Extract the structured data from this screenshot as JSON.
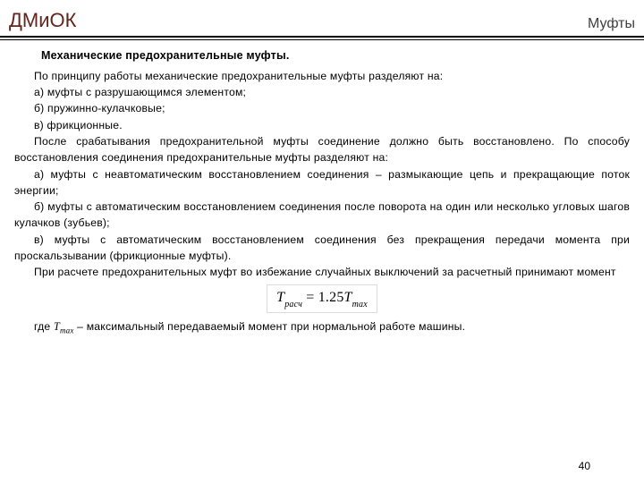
{
  "colors": {
    "brand": "#65241c",
    "section": "#404040",
    "text": "#000000",
    "border": "#dcdcdc",
    "bg": "#ffffff"
  },
  "header": {
    "brand": "ДМиОК",
    "section": "Муфты"
  },
  "subheading": "Механические предохранительные муфты.",
  "paragraphs": {
    "p1": "По принципу работы механические предохранительные муфты разделяют на:",
    "a1": "а) муфты с разрушающимся элементом;",
    "b1": "б) пружинно-кулачковые;",
    "c1": "в) фрикционные.",
    "p2": "После срабатывания предохранительной муфты соединение должно быть восстановлено. По способу восстановления соединения предохранительные муфты разделяют на:",
    "a2": "а) муфты с неавтоматическим восстановлением соединения – размыкающие цепь и прекращающие поток энергии;",
    "b2": "б) муфты с автоматическим восстановлением соединения после поворота на один или несколько угловых шагов кулачков (зубьев);",
    "c2": "в) муфты с автоматическим восстановлением соединения без прекращения передачи момента при проскальзывании (фрикционные муфты).",
    "p3": "При расчете предохранительных муфт во избежание случайных выключений за расчетный принимают момент"
  },
  "formula": {
    "left_var": "T",
    "left_sub": "расч",
    "eq": " = 1.25",
    "right_var": "T",
    "right_sub": "max"
  },
  "closing": {
    "pre": "где ",
    "var": "T",
    "sub": "max",
    "post": " – максимальный передаваемый момент при нормальной работе машины."
  },
  "page_number": "40"
}
